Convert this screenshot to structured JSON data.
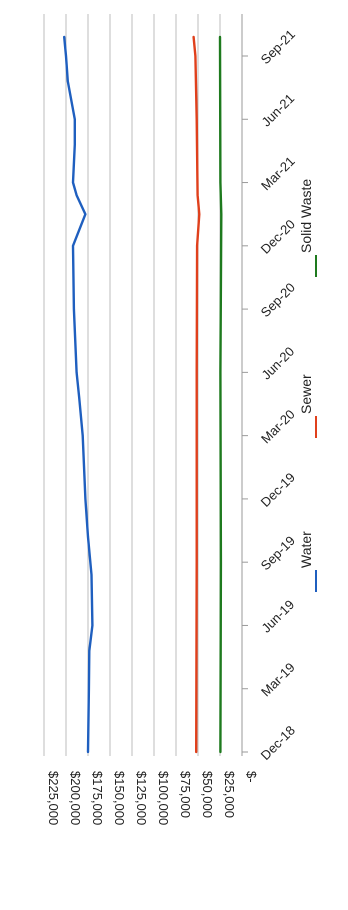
{
  "chart_data": {
    "type": "line",
    "categories": [
      "Dec-18",
      "Mar-19",
      "Jun-19",
      "Sep-19",
      "Dec-19",
      "Mar-20",
      "Jun-20",
      "Sep-20",
      "Dec-20",
      "Mar-21",
      "Jun-21",
      "Sep-21"
    ],
    "y_tick_labels": [
      "$225,000",
      "$200,000",
      "$175,000",
      "$150,000",
      "$125,000",
      "$100,000",
      "$75,000",
      "$50,000",
      "$25,000",
      "$-"
    ],
    "ylim": [
      0,
      225000
    ],
    "grid": true,
    "legend_position": "bottom",
    "orientation": "rotated-90-clockwise",
    "series": [
      {
        "name": "Water",
        "color": "#1f5fbf",
        "points": [
          [
            0,
            175000
          ],
          [
            1,
            174000
          ],
          [
            1.6,
            173500
          ],
          [
            2.0,
            170000
          ],
          [
            2.8,
            171000
          ],
          [
            3.4,
            175000
          ],
          [
            4.0,
            178000
          ],
          [
            5.0,
            181000
          ],
          [
            5.6,
            185000
          ],
          [
            6.0,
            188000
          ],
          [
            7.0,
            191000
          ],
          [
            8.0,
            192000
          ],
          [
            8.5,
            178000
          ],
          [
            8.8,
            188000
          ],
          [
            9.0,
            192000
          ],
          [
            9.6,
            190000
          ],
          [
            10.0,
            190000
          ],
          [
            10.6,
            198000
          ],
          [
            11.0,
            200000
          ],
          [
            11.3,
            202000
          ]
        ]
      },
      {
        "name": "Sewer",
        "color": "#e0401c",
        "points": [
          [
            0,
            52000
          ],
          [
            3.0,
            51500
          ],
          [
            6.0,
            51500
          ],
          [
            8.0,
            51000
          ],
          [
            8.5,
            48500
          ],
          [
            8.8,
            50500
          ],
          [
            10.0,
            51500
          ],
          [
            11.0,
            53000
          ],
          [
            11.3,
            55000
          ]
        ]
      },
      {
        "name": "Solid Waste",
        "color": "#1e7a1e",
        "points": [
          [
            0,
            24500
          ],
          [
            3.0,
            24000
          ],
          [
            6.0,
            24500
          ],
          [
            8.5,
            23500
          ],
          [
            9.0,
            24500
          ],
          [
            11.3,
            25000
          ]
        ]
      }
    ]
  }
}
